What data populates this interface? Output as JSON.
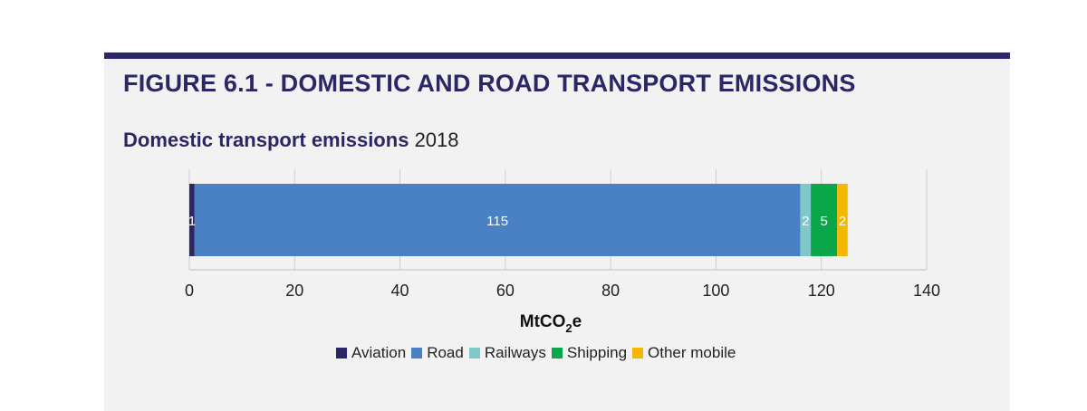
{
  "figure": {
    "title": "FIGURE 6.1 - DOMESTIC AND ROAD TRANSPORT EMISSIONS",
    "subtitle_bold": "Domestic transport emissions",
    "subtitle_year": "2018"
  },
  "colors": {
    "brand": "#2b2666",
    "panel": "#f2f2f2"
  },
  "chart_data": {
    "type": "bar",
    "orientation": "horizontal",
    "stacked": true,
    "categories": [
      "2018"
    ],
    "series": [
      {
        "name": "Aviation",
        "values": [
          1
        ],
        "label": "1",
        "color": "#2b2666"
      },
      {
        "name": "Road",
        "values": [
          115
        ],
        "label": "115",
        "color": "#4a81c4"
      },
      {
        "name": "Railways",
        "values": [
          2
        ],
        "label": "2",
        "color": "#7fc8c8"
      },
      {
        "name": "Shipping",
        "values": [
          5
        ],
        "label": "5",
        "color": "#0aa64a"
      },
      {
        "name": "Other mobile",
        "values": [
          2
        ],
        "label": "2",
        "color": "#f5b800"
      }
    ],
    "xlabel_main": "MtCO",
    "xlabel_sub": "2",
    "xlabel_tail": "e",
    "xlim": [
      0,
      140
    ],
    "xticks": [
      "0",
      "20",
      "40",
      "60",
      "80",
      "100",
      "120",
      "140"
    ],
    "grid": true,
    "legend_position": "bottom"
  }
}
